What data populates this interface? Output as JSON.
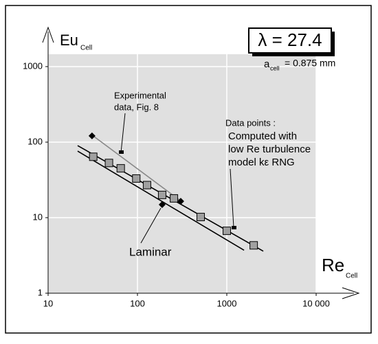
{
  "chart_data": {
    "type": "scatter",
    "log_x": true,
    "log_y": true,
    "xlim": [
      10,
      10000
    ],
    "ylim": [
      1,
      1000
    ],
    "xticks": [
      10,
      100,
      1000,
      {
        "value": 10000,
        "label": "10 000"
      }
    ],
    "yticks": [
      1,
      10,
      100,
      1000
    ],
    "grid": true,
    "y_label": "Eu",
    "y_label_sub": "Cell",
    "x_label": "Re",
    "x_label_sub": "Cell",
    "lambda_label": "λ = 27.4",
    "a_label": "a",
    "a_sub": "cell",
    "a_value": "= 0.875 mm",
    "experimental_label": [
      "Experimental",
      "data, Fig. 8"
    ],
    "computed_label": [
      "Data points :",
      "Computed with",
      "low Re turbulence",
      "model  kε RNG"
    ],
    "laminar_label": "Laminar",
    "series": [
      {
        "marker": "line",
        "color": "#888888",
        "x": [
          30.5,
          300
        ],
        "values": [
          126,
          16.9
        ]
      },
      {
        "marker": "line",
        "color": "#000000",
        "x": [
          21.4,
          2560
        ],
        "values": [
          90,
          3.6
        ]
      },
      {
        "marker": "line",
        "color": "#000000",
        "x": [
          21.4,
          1560
        ],
        "values": [
          76,
          3.7
        ]
      },
      {
        "marker": "square",
        "color": "#a0a0a0",
        "x": [
          32,
          48,
          65,
          97,
          128,
          189,
          256,
          510,
          1000,
          2000
        ],
        "values": [
          64,
          53,
          45,
          33,
          27,
          20,
          18,
          10.2,
          6.7,
          4.3
        ]
      },
      {
        "marker": "diamond",
        "color": "#000000",
        "x": [
          31,
          189,
          305
        ],
        "values": [
          121,
          14.9,
          16.5
        ]
      }
    ]
  }
}
